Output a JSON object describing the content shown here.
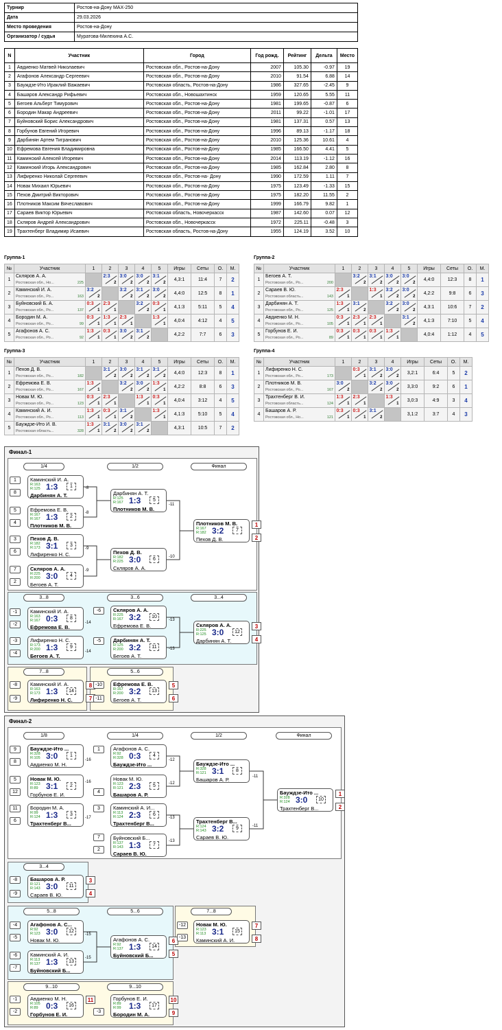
{
  "info": [
    [
      "Турнир",
      "Ростов-на-Дону MAX-250"
    ],
    [
      "Дата",
      "29.03.2026"
    ],
    [
      "Место проведения",
      "Ростов-на-Дону"
    ],
    [
      "Организатор / судья",
      "Муратова-Милехина А.С."
    ]
  ],
  "parts_head": [
    "N",
    "Участник",
    "Город",
    "Год рожд.",
    "Рейтинг",
    "Дельта",
    "Место"
  ],
  "parts": [
    [
      "1",
      "Авдиенко Матвей Николаевич",
      "Ростовская обл., Ростов-на-Дону",
      "2007",
      "105.30",
      "-0.97",
      "19"
    ],
    [
      "2",
      "Агафонов Александр Сергеевич",
      "Ростовская обл., Ростов-на-Дону",
      "2010",
      "91.54",
      "6.88",
      "14"
    ],
    [
      "3",
      "Бауждзе-Ито Ираклий Важаевич",
      "Ростовская область, Ростов-на-Дону",
      "1986",
      "327.65",
      "-2.45",
      "9"
    ],
    [
      "4",
      "Башаров Александр Рифьевич",
      "Ростовская обл., Новошахтинск",
      "1959",
      "120.65",
      "5.55",
      "11"
    ],
    [
      "5",
      "Бегоев Альберт Тимурович",
      "Ростовская обл., Ростов-на-Дону",
      "1981",
      "199.65",
      "-0.87",
      "6"
    ],
    [
      "6",
      "Бородин Макар Андреевич",
      "Ростовская обл., Ростов-на-Дону",
      "2011",
      "99.22",
      "-1.01",
      "17"
    ],
    [
      "7",
      "Буйновский Борис Александрович",
      "Ростовская обл., Ростов-на-Дону",
      "1981",
      "137.31",
      "0.57",
      "13"
    ],
    [
      "8",
      "Горбунов Евгений Игоревич",
      "Ростовская обл., Ростов-на-Дону",
      "1996",
      "89.13",
      "-1.17",
      "18"
    ],
    [
      "9",
      "Дарбинян Артем Тигранович",
      "Ростовская обл., Ростов-на-Дону",
      "2010",
      "125.36",
      "10.61",
      "4"
    ],
    [
      "10",
      "Ефремова Евгения Владимировна",
      "Ростовская обл., Ростов-на-Дону",
      "1985",
      "166.50",
      "4.41",
      "5"
    ],
    [
      "11",
      "Каминский Алексей Игоревич",
      "Ростовская обл., Ростов-на-Дону",
      "2014",
      "113.19",
      "-1.12",
      "16"
    ],
    [
      "12",
      "Каминский Игорь Александрович",
      "Ростовская обл., Ростов-на-Дону",
      "1985",
      "162.84",
      "2.80",
      "8"
    ],
    [
      "13",
      "Лифиренко Николай Сергеевич",
      "Ростовская обл., Ростов-на- Дону",
      "1990",
      "172.59",
      "1.11",
      "7"
    ],
    [
      "14",
      "Новак Михаил Юрьевич",
      "Ростовская обл., Ростов-на-Дону",
      "1975",
      "123.49",
      "-1.33",
      "15"
    ],
    [
      "15",
      "Пехов Дмитрий Викторович",
      "Ростовская обл., Ростов-на-Дону",
      "1975",
      "182.20",
      "11.55",
      "2"
    ],
    [
      "16",
      "Плотников Максим Вячеславович",
      "Ростовская обл., Ростов-на-Дону",
      "1999",
      "166.79",
      "9.82",
      "1"
    ],
    [
      "17",
      "Сараев Виктор Юрьевич",
      "Ростовская область, Новочеркасск",
      "1987",
      "142.60",
      "0.07",
      "12"
    ],
    [
      "18",
      "Скляров Андрей Александрович",
      "Ростовская обл., Новочеркасск",
      "1972",
      "225.11",
      "-0.48",
      "3"
    ],
    [
      "19",
      "Трахтенберг Владимир Исаевич",
      "Ростовская область, Ростов-на-Дону",
      "1955",
      "124.19",
      "3.52",
      "10"
    ]
  ],
  "group_head": [
    "№",
    "Участник",
    "Игры",
    "Сеты",
    "О.",
    "М."
  ],
  "groups": [
    {
      "title": "Группа-1",
      "size": 5,
      "rows": [
        {
          "n": "1",
          "name": "Скляров А. А.",
          "reg": "Ростовская обл., Но...",
          "r": "225",
          "sc": [
            "X",
            "2:3/2",
            "3:0/2",
            "3:0/2",
            "3:1/2"
          ],
          "g": "4,3:1",
          "s": "11:4",
          "o": "7",
          "m": "2"
        },
        {
          "n": "2",
          "name": "Каминский И. А.",
          "reg": "Ростовская обл., Ро...",
          "r": "163",
          "sc": [
            "3:2/2",
            "X",
            "3:2/2",
            "3:1/2",
            "3:0/2"
          ],
          "g": "4,4:0",
          "s": "12:5",
          "o": "8",
          "m": "1"
        },
        {
          "n": "3",
          "name": "Буйновский Б. А.",
          "reg": "Ростовская обл., Ро...",
          "r": "137",
          "sc": [
            "0:3/1",
            "2:3/1",
            "X",
            "3:2/2",
            "0:3/1"
          ],
          "g": "4,1:3",
          "s": "5:11",
          "o": "5",
          "m": "4"
        },
        {
          "n": "4",
          "name": "Бородин М. А.",
          "reg": "Ростовская обл., Ро...",
          "r": "99",
          "sc": [
            "0:3/1",
            "1:3/1",
            "2:3/1",
            "X",
            "1:3/1"
          ],
          "g": "4,0:4",
          "s": "4:12",
          "o": "4",
          "m": "5"
        },
        {
          "n": "5",
          "name": "Агафонов А. С.",
          "reg": "Ростовская обл., Ро...",
          "r": "92",
          "sc": [
            "1:3/1",
            "0:3/1",
            "3:0/2",
            "3:1/2",
            "X"
          ],
          "g": "4,2:2",
          "s": "7:7",
          "o": "6",
          "m": "3"
        }
      ]
    },
    {
      "title": "Группа-2",
      "size": 5,
      "rows": [
        {
          "n": "1",
          "name": "Бегоев А. Т.",
          "reg": "Ростовская обл., Ро...",
          "r": "200",
          "sc": [
            "X",
            "3:2/2",
            "3:1/2",
            "3:0/2",
            "3:0/2"
          ],
          "g": "4,4:0",
          "s": "12:3",
          "o": "8",
          "m": "1"
        },
        {
          "n": "2",
          "name": "Сараев В. Ю.",
          "reg": "Ростовская область...",
          "r": "143",
          "sc": [
            "2:3/1",
            "X",
            "1:3/1",
            "3:2/2",
            "3:0/2"
          ],
          "g": "4,2:2",
          "s": "9:8",
          "o": "6",
          "m": "3"
        },
        {
          "n": "3",
          "name": "Дарбинян А. Т.",
          "reg": "Ростовская обл., Ро...",
          "r": "125",
          "sc": [
            "1:3/1",
            "3:1/2",
            "X",
            "3:2/2",
            "3:0/2"
          ],
          "g": "4,3:1",
          "s": "10:6",
          "o": "7",
          "m": "2"
        },
        {
          "n": "4",
          "name": "Авдиенко М. Н.",
          "reg": "Ростовская обл., Ро...",
          "r": "105",
          "sc": [
            "0:3/1",
            "2:3/1",
            "2:3/1",
            "X",
            "3:1/2"
          ],
          "g": "4,1:3",
          "s": "7:10",
          "o": "5",
          "m": "4"
        },
        {
          "n": "5",
          "name": "Горбунов Е. И.",
          "reg": "Ростовская обл., Ро...",
          "r": "89",
          "sc": [
            "0:3/1",
            "0:3/1",
            "0:3/1",
            "1:3/1",
            "X"
          ],
          "g": "4,0:4",
          "s": "1:12",
          "o": "4",
          "m": "5"
        }
      ]
    },
    {
      "title": "Группа-3",
      "size": 5,
      "rows": [
        {
          "n": "1",
          "name": "Пехов Д. В.",
          "reg": "Ростовская обл., Ро...",
          "r": "182",
          "sc": [
            "X",
            "3:1/2",
            "3:0/2",
            "3:1/2",
            "3:1/2"
          ],
          "g": "4,4:0",
          "s": "12:3",
          "o": "8",
          "m": "1"
        },
        {
          "n": "2",
          "name": "Ефремова Е. В.",
          "reg": "Ростовская обл., Ро...",
          "r": "167",
          "sc": [
            "1:3/1",
            "X",
            "3:2/2",
            "3:0/2",
            "1:3/1"
          ],
          "g": "4,2:2",
          "s": "8:8",
          "o": "6",
          "m": "3"
        },
        {
          "n": "3",
          "name": "Новак М. Ю.",
          "reg": "Ростовская обл., Ро...",
          "r": "123",
          "sc": [
            "0:3/1",
            "2:3/1",
            "X",
            "1:3/1",
            "0:3/1"
          ],
          "g": "4,0:4",
          "s": "3:12",
          "o": "4",
          "m": "5"
        },
        {
          "n": "4",
          "name": "Каминский А. И.",
          "reg": "Ростовская обл., Ро...",
          "r": "113",
          "sc": [
            "1:3/1",
            "0:3/1",
            "3:1/2",
            "X",
            "1:3/1"
          ],
          "g": "4,1:3",
          "s": "5:10",
          "o": "5",
          "m": "4"
        },
        {
          "n": "5",
          "name": "Бауждзе-Ито И. В.",
          "reg": "Ростовская область...",
          "r": "328",
          "sc": [
            "1:3/1",
            "3:1/2",
            "3:0/2",
            "3:1/2",
            "X"
          ],
          "g": "4,3:1",
          "s": "10:5",
          "o": "7",
          "m": "2"
        }
      ]
    },
    {
      "title": "Группа-4",
      "size": 4,
      "rows": [
        {
          "n": "1",
          "name": "Лифиренко Н. С.",
          "reg": "Ростовская обл., Ро...",
          "r": "173",
          "sc": [
            "X",
            "0:3/1",
            "3:1/2",
            "3:0/2"
          ],
          "g": "3,2:1",
          "s": "6:4",
          "o": "5",
          "m": "2"
        },
        {
          "n": "2",
          "name": "Плотников М. В.",
          "reg": "Ростовская обл., Ро...",
          "r": "167",
          "sc": [
            "3:0/2",
            "X",
            "3:2/2",
            "3:0/2"
          ],
          "g": "3,3:0",
          "s": "9:2",
          "o": "6",
          "m": "1"
        },
        {
          "n": "3",
          "name": "Трахтенберг В. И.",
          "reg": "Ростовская область...",
          "r": "124",
          "sc": [
            "1:3/1",
            "2:3/1",
            "X",
            "1:3/1"
          ],
          "g": "3,0:3",
          "s": "4:9",
          "o": "3",
          "m": "4"
        },
        {
          "n": "4",
          "name": "Башаров А. Р.",
          "reg": "Ростовская обл., Но...",
          "r": "121",
          "sc": [
            "0:3/1",
            "0:3/1",
            "3:1/2",
            "X"
          ],
          "g": "3,1:2",
          "s": "3:7",
          "o": "4",
          "m": "3"
        }
      ]
    }
  ],
  "final1": {
    "title": "Финал-1",
    "rounds": [
      "1/4",
      "1/2",
      "Финал",
      "3...8",
      "3...6",
      "3...4",
      "7...8",
      "5...6"
    ]
  },
  "final2": {
    "title": "Финал-2",
    "rounds": [
      "1/8",
      "1/4",
      "1/2",
      "Финал",
      "3...4",
      "5...8",
      "5...6",
      "7...8",
      "9...10",
      "9...10"
    ]
  },
  "matches": [
    {
      "id": "f1a",
      "p1": "Каминский И. А.",
      "r1": "R:163",
      "p2": "Дарбинян А. Т.",
      "r2": "R:125",
      "s": "1:3",
      "n": "1",
      "w": 2
    },
    {
      "id": "f1b",
      "p1": "Ефремова Е. В.",
      "r1": "R:167",
      "p2": "Плотников М. В.",
      "r2": "R:167",
      "s": "1:3",
      "n": "2",
      "w": 2
    },
    {
      "id": "f1c",
      "p1": "Пехов Д. В.",
      "r1": "R:182",
      "p2": "Лифиренко Н. С.",
      "r2": "R:173",
      "s": "3:1",
      "n": "3",
      "w": 1
    },
    {
      "id": "f1d",
      "p1": "Скляров А. А.",
      "r1": "R:225",
      "p2": "Бегоев А. Т.",
      "r2": "R:200",
      "s": "3:0",
      "n": "4",
      "w": 1
    },
    {
      "id": "f1e",
      "p1": "Дарбинян А. Т.",
      "r1": "R:125",
      "p2": "Плотников М. В.",
      "r2": "R:167",
      "s": "1:3",
      "n": "5",
      "w": 2
    },
    {
      "id": "f1f",
      "p1": "Пехов Д. В.",
      "r1": "R:182",
      "p2": "Скляров А. А.",
      "r2": "R:225",
      "s": "3:0",
      "n": "6",
      "w": 1
    },
    {
      "id": "f1g",
      "p1": "Плотников М. В.",
      "r1": "R:167",
      "p2": "Пехов Д. В.",
      "r2": "R:182",
      "s": "3:2",
      "n": "7",
      "w": 1,
      "pl": [
        "1",
        "2"
      ]
    },
    {
      "id": "f1h",
      "p1": "Каминский И. А.",
      "r1": "R:163",
      "p2": "Ефремова Е. В.",
      "r2": "R:167",
      "s": "0:3",
      "n": "8",
      "w": 2
    },
    {
      "id": "f1i",
      "p1": "Лифиренко Н. С.",
      "r1": "R:173",
      "p2": "Бегоев А. Т.",
      "r2": "R:200",
      "s": "1:3",
      "n": "9",
      "w": 2
    },
    {
      "id": "f1j",
      "p1": "Скляров А. А.",
      "r1": "R:225",
      "p2": "Ефремова Е. В.",
      "r2": "R:167",
      "s": "3:2",
      "n": "10",
      "w": 1
    },
    {
      "id": "f1k",
      "p1": "Дарбинян А. Т.",
      "r1": "R:125",
      "p2": "Бегоев А. Т.",
      "r2": "R:200",
      "s": "3:2",
      "n": "11",
      "w": 1
    },
    {
      "id": "f1l",
      "p1": "Скляров А. А.",
      "r1": "R:225",
      "p2": "Дарбинян А. Т.",
      "r2": "R:125",
      "s": "3:0",
      "n": "12",
      "w": 1,
      "pl": [
        "3",
        "4"
      ]
    },
    {
      "id": "f1m",
      "p1": "Каминский И. А.",
      "r1": "R:163",
      "p2": "Лифиренко Н. С.",
      "r2": "R:173",
      "s": "1:3",
      "n": "14",
      "w": 2,
      "pl": [
        "8",
        "7"
      ]
    },
    {
      "id": "f1n",
      "p1": "Ефремова Е. В.",
      "r1": "R:167",
      "p2": "Бегоев А. Т.",
      "r2": "R:200",
      "s": "3:2",
      "n": "13",
      "w": 1,
      "pl": [
        "5",
        "6"
      ]
    },
    {
      "id": "f2a",
      "p1": "Бауждзе-Ито ...",
      "r1": "R:328",
      "p2": "Авдиенко М. Н.",
      "r2": "R:105",
      "s": "3:0",
      "n": "1",
      "w": 1
    },
    {
      "id": "f2b",
      "p1": "Новак М. Ю.",
      "r1": "R:123",
      "p2": "Горбунов Е. И.",
      "r2": "R:89",
      "s": "3:1",
      "n": "2",
      "w": 1
    },
    {
      "id": "f2c",
      "p1": "Бородин М. А.",
      "r1": "R:99",
      "p2": "Трахтенберг В...",
      "r2": "R:124",
      "s": "1:3",
      "n": "3",
      "w": 2
    },
    {
      "id": "f2d",
      "p1": "Агафонов А. С.",
      "r1": "R:92",
      "p2": "Бауждзе-Ито ...",
      "r2": "R:328",
      "s": "0:3",
      "n": "4",
      "w": 2
    },
    {
      "id": "f2e",
      "p1": "Новак М. Ю.",
      "r1": "R:123",
      "p2": "Башаров А. Р.",
      "r2": "R:121",
      "s": "2:3",
      "n": "5",
      "w": 2
    },
    {
      "id": "f2f",
      "p1": "Каминский А. И...",
      "r1": "R:113",
      "p2": "Трахтенберг В...",
      "r2": "R:124",
      "s": "2:3",
      "n": "6",
      "w": 2
    },
    {
      "id": "f2g",
      "p1": "Буйновский Б...",
      "r1": "R:137",
      "p2": "Сараев В. Ю.",
      "r2": "R:143",
      "s": "1:3",
      "n": "7",
      "w": 2
    },
    {
      "id": "f2h",
      "p1": "Бауждзе-Ито ...",
      "r1": "R:328",
      "p2": "Башаров А. Р.",
      "r2": "R:121",
      "s": "3:1",
      "n": "8",
      "w": 1
    },
    {
      "id": "f2i",
      "p1": "Трахтенберг В...",
      "r1": "R:124",
      "p2": "Сараев В. Ю.",
      "r2": "R:143",
      "s": "3:2",
      "n": "9",
      "w": 1
    },
    {
      "id": "f2j",
      "p1": "Бауждзе-Ито ...",
      "r1": "R:328",
      "p2": "Трахтенберг В...",
      "r2": "R:124",
      "s": "3:0",
      "n": "10",
      "w": 1,
      "pl": [
        "1",
        "2"
      ]
    },
    {
      "id": "f2k",
      "p1": "Башаров А. Р.",
      "r1": "R:121",
      "p2": "Сараев В. Ю.",
      "r2": "R:143",
      "s": "3:0",
      "n": "11",
      "w": 1,
      "pl": [
        "3",
        "4"
      ]
    },
    {
      "id": "f2l",
      "p1": "Агафонов А. С...",
      "r1": "R:92",
      "p2": "Новак М. Ю.",
      "r2": "R:123",
      "s": "3:0",
      "n": "12",
      "w": 1
    },
    {
      "id": "f2m",
      "p1": "Каминский А. И.",
      "r1": "R:113",
      "p2": "Буйновский Б...",
      "r2": "R:137",
      "s": "1:3",
      "n": "13",
      "w": 2
    },
    {
      "id": "f2n",
      "p1": "Агафонов А. С.",
      "r1": "R:92",
      "p2": "Буйновский Б...",
      "r2": "R:137",
      "s": "1:3",
      "n": "14",
      "w": 2,
      "pl": [
        "6",
        "5"
      ]
    },
    {
      "id": "f2o",
      "p1": "Новак М. Ю.",
      "r1": "R:123",
      "p2": "Каминский А. И.",
      "r2": "R:113",
      "s": "3:1",
      "n": "15",
      "w": 1,
      "pl": [
        "7",
        "8"
      ]
    },
    {
      "id": "f2p",
      "p1": "Авдиенко М. Н.",
      "r1": "R:105",
      "p2": "Горбунов Е. И.",
      "r2": "R:89",
      "s": "0:3",
      "n": "16",
      "w": 2,
      "pl": [
        "11"
      ]
    },
    {
      "id": "f2q",
      "p1": "Горбунов Е. И.",
      "r1": "R:89",
      "p2": "Бородин М. А.",
      "r2": "R:99",
      "s": "1:3",
      "n": "17",
      "w": 2,
      "pl": [
        "10",
        "9"
      ]
    }
  ],
  "seeds": {
    "f1": [
      "1",
      "8",
      "5",
      "4",
      "3",
      "6",
      "7",
      "2",
      "-1",
      "-2",
      "-3",
      "-4",
      "-6",
      "-5",
      "-8",
      "-9",
      "-10",
      "-11"
    ],
    "f2": [
      "9",
      "8",
      "5",
      "12",
      "11",
      "6",
      "1",
      "4",
      "3",
      "7",
      "2",
      "-8",
      "-9",
      "-4",
      "-5",
      "-6",
      "-7",
      "-12",
      "-13",
      "-1",
      "-2",
      "-3"
    ]
  },
  "next": {
    "f1": [
      "-8",
      "-8",
      "-9",
      "-9",
      "-11",
      "-10",
      "-14",
      "-14",
      "-13",
      "-13"
    ],
    "f2": [
      "-16",
      "-16",
      "-17",
      "-12",
      "-12",
      "-13",
      "-13",
      "-11",
      "-11",
      "-15",
      "-15"
    ]
  }
}
